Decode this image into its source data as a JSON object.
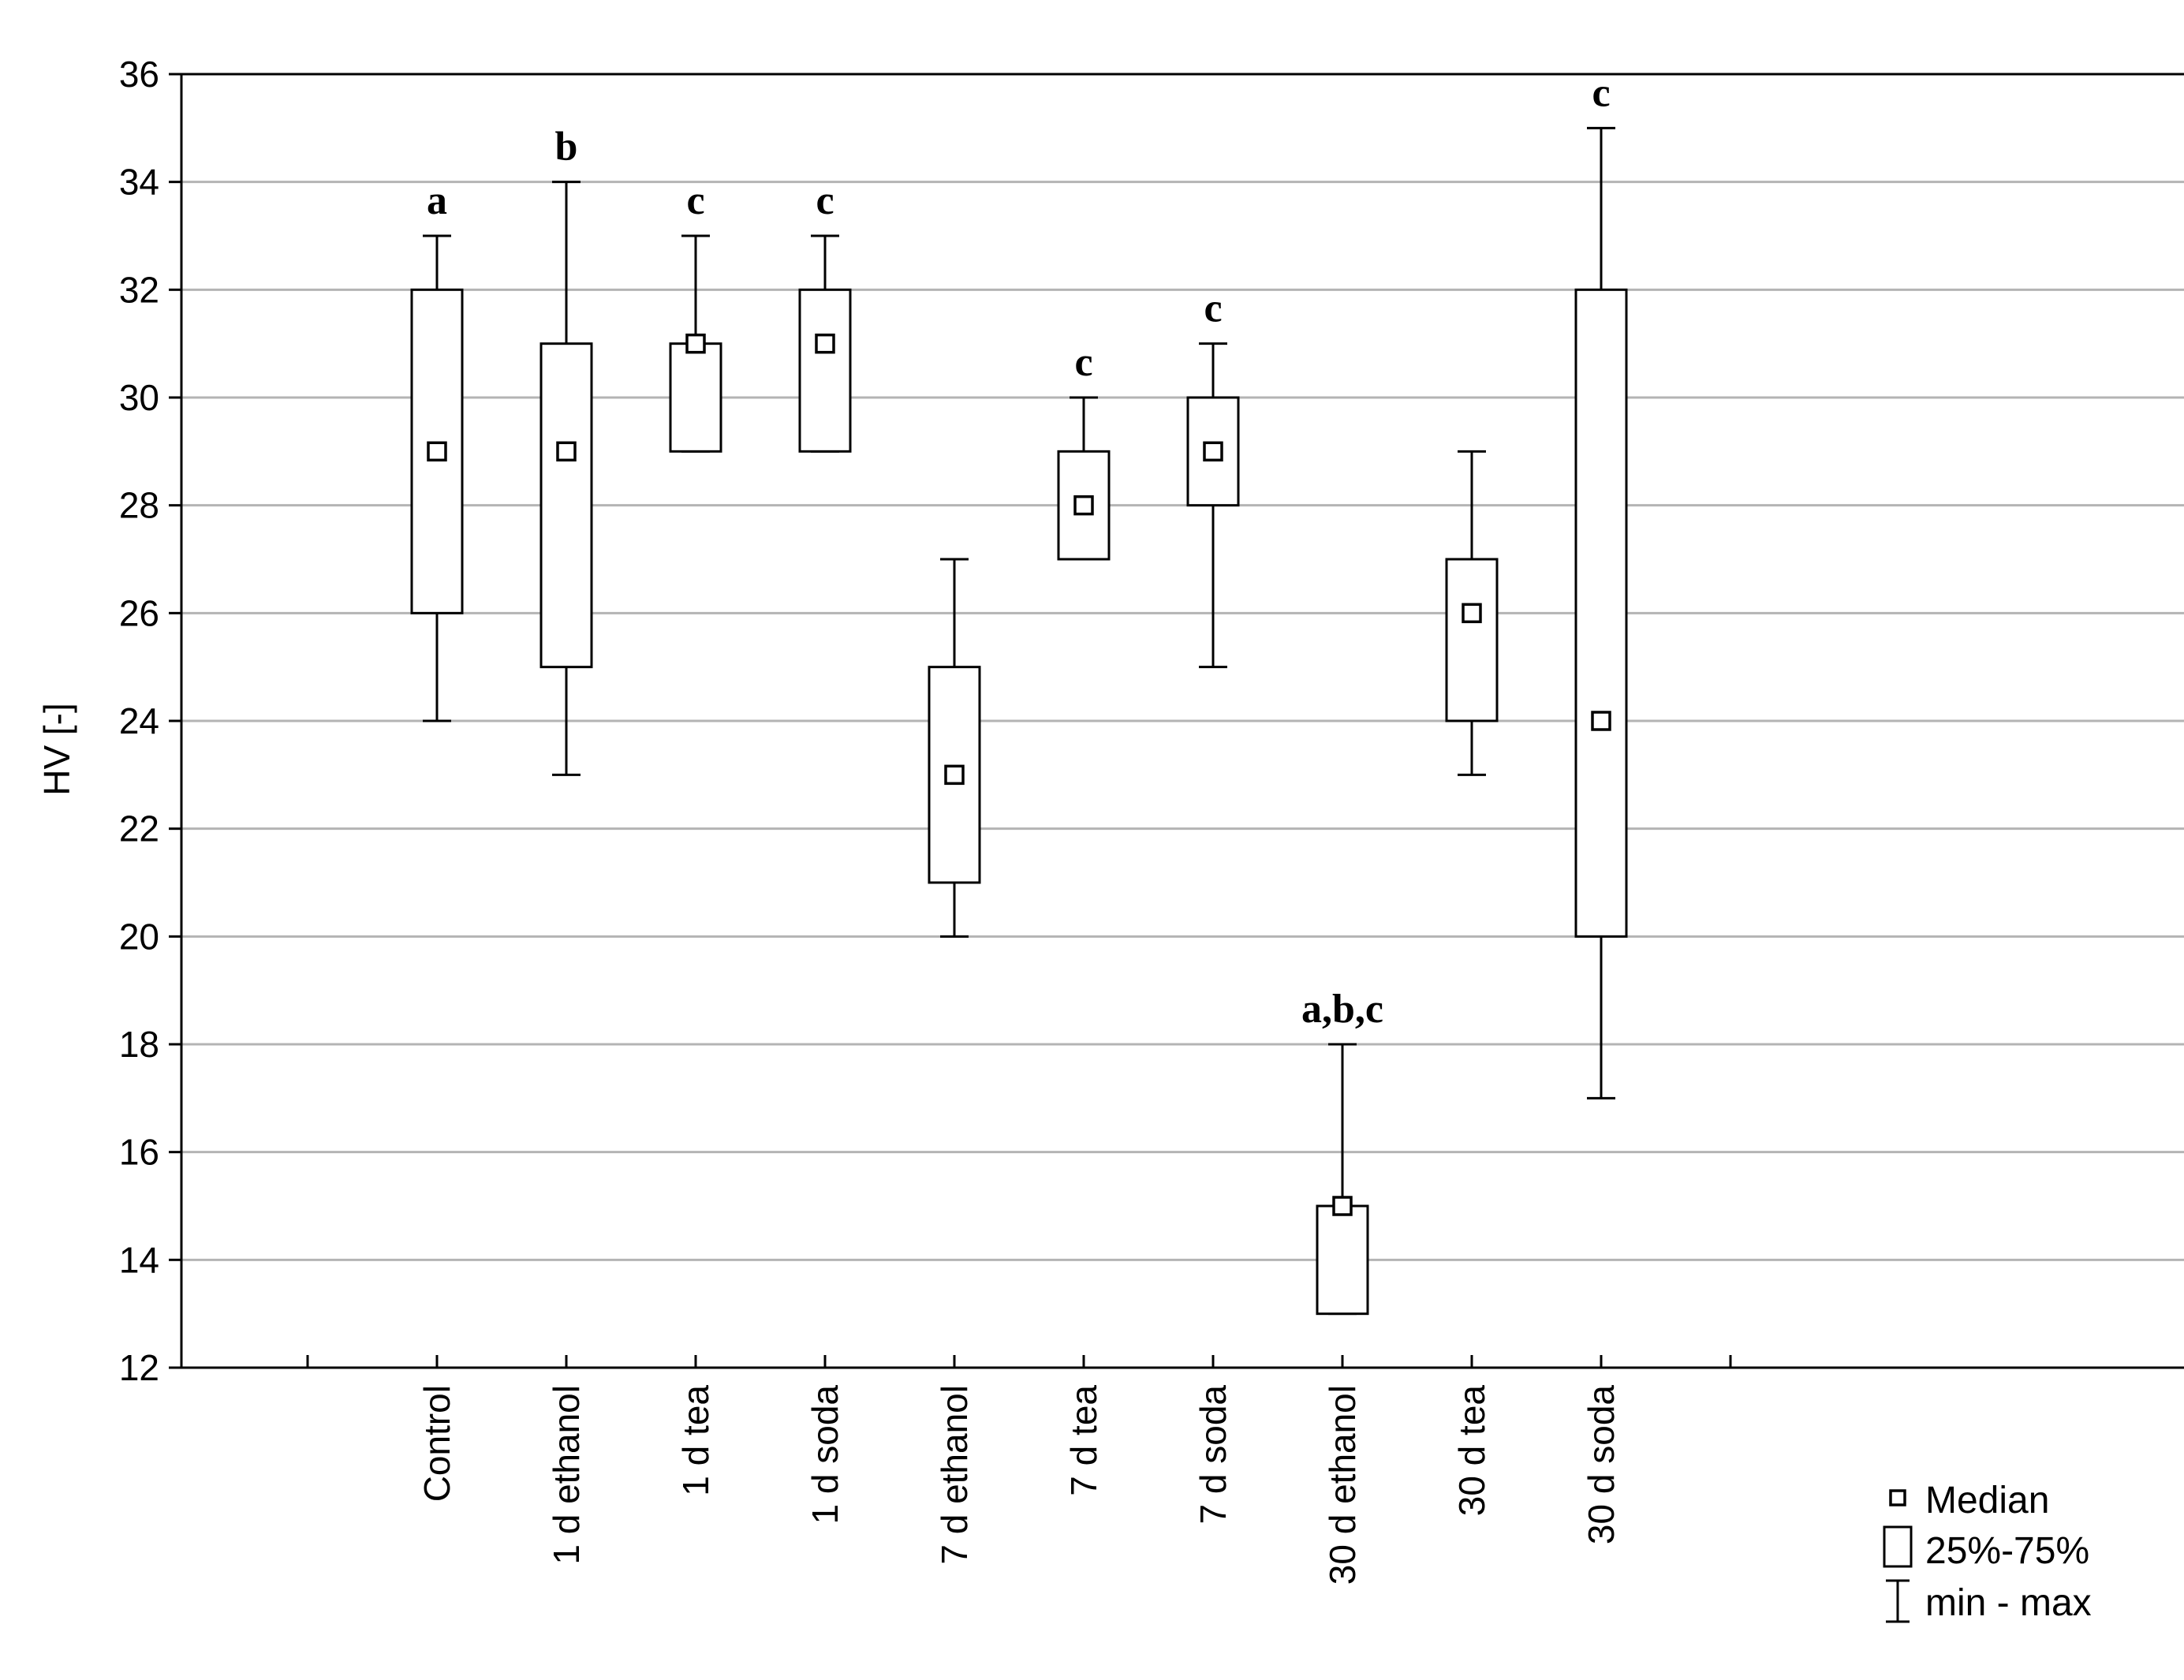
{
  "chart_data": {
    "type": "boxplot",
    "title": "",
    "xlabel": "",
    "ylabel": "HV [-]",
    "ylim": [
      12,
      36
    ],
    "yticks": [
      12,
      14,
      16,
      18,
      20,
      22,
      24,
      26,
      28,
      30,
      32,
      34,
      36
    ],
    "grid": true,
    "legend_position": "bottom-right",
    "legend": [
      {
        "symbol": "median",
        "label": "Median"
      },
      {
        "symbol": "box",
        "label": "25%-75%"
      },
      {
        "symbol": "whisker",
        "label": "min - max"
      }
    ],
    "categories": [
      "Control",
      "1 d ethanol",
      "1 d tea",
      "1 d soda",
      "7 d ethanol",
      "7 d tea",
      "7 d soda",
      "30 d ethanol",
      "30 d tea",
      "30 d soda"
    ],
    "series": [
      {
        "name": "Control",
        "min": 24,
        "q1": 26,
        "median": 29,
        "q3": 32,
        "max": 33,
        "letter": "a"
      },
      {
        "name": "1 d ethanol",
        "min": 23,
        "q1": 25,
        "median": 29,
        "q3": 31,
        "max": 34,
        "letter": "b"
      },
      {
        "name": "1 d tea",
        "min": 29,
        "q1": 29,
        "median": 31,
        "q3": 31,
        "max": 33,
        "letter": "c"
      },
      {
        "name": "1 d soda",
        "min": 29,
        "q1": 29,
        "median": 31,
        "q3": 32,
        "max": 33,
        "letter": "c"
      },
      {
        "name": "7 d ethanol",
        "min": 20,
        "q1": 21,
        "median": 23,
        "q3": 25,
        "max": 27,
        "letter": ""
      },
      {
        "name": "7 d tea",
        "min": 27,
        "q1": 27,
        "median": 28,
        "q3": 29,
        "max": 30,
        "letter": "c"
      },
      {
        "name": "7 d soda",
        "min": 25,
        "q1": 28,
        "median": 29,
        "q3": 30,
        "max": 31,
        "letter": "c"
      },
      {
        "name": "30 d ethanol",
        "min": 13,
        "q1": 13,
        "median": 15,
        "q3": 15,
        "max": 18,
        "letter": "a,b,c"
      },
      {
        "name": "30 d tea",
        "min": 23,
        "q1": 24,
        "median": 26,
        "q3": 27,
        "max": 29,
        "letter": ""
      },
      {
        "name": "30 d soda",
        "min": 17,
        "q1": 20,
        "median": 24,
        "q3": 32,
        "max": 35,
        "letter": "c"
      }
    ]
  }
}
